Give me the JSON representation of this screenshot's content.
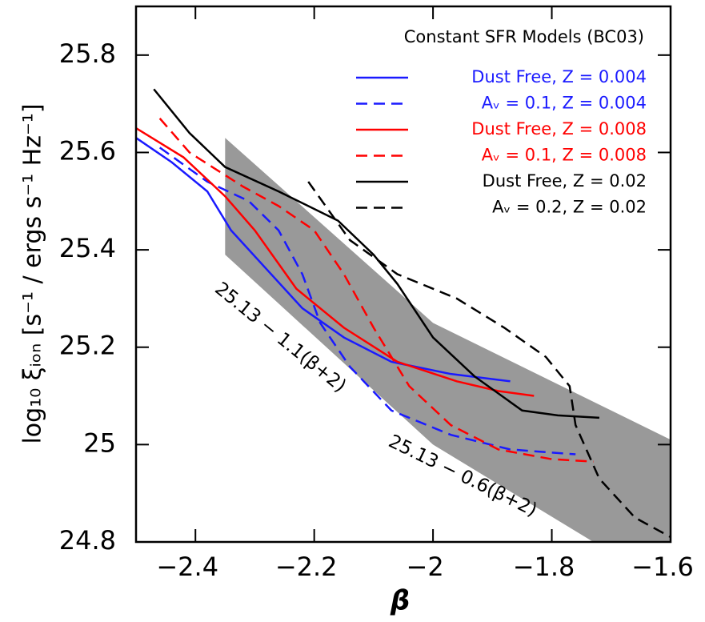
{
  "chart_data": {
    "type": "line",
    "xlabel": "β",
    "ylabel": "log₁₀ ξᵢₒₙ [s⁻¹ / ergs s⁻¹ Hz⁻¹]",
    "xlim": [
      -2.5,
      -1.6
    ],
    "ylim": [
      24.8,
      25.9
    ],
    "xticks": [
      {
        "value": -2.4,
        "label": "−2.4"
      },
      {
        "value": -2.2,
        "label": "−2.2"
      },
      {
        "value": -2,
        "label": "−2"
      },
      {
        "value": -1.8,
        "label": "−1.8"
      },
      {
        "value": -1.6,
        "label": "−1.6"
      }
    ],
    "yticks": [
      24.8,
      25,
      25.2,
      25.4,
      25.6,
      25.8
    ],
    "legend_title": "Constant SFR Models (BC03)",
    "legend_position": "upper right",
    "shaded_region": {
      "color": "#999999",
      "x": [
        -2.35,
        -2.0,
        -1.6,
        -1.6,
        -1.73,
        -2.0,
        -2.35
      ],
      "y": [
        25.63,
        25.25,
        25.01,
        24.8,
        24.8,
        25.0,
        25.39
      ]
    },
    "annotations": [
      "25.13 − 1.1(β+2)",
      "25.13 − 0.6(β+2)"
    ],
    "series": [
      {
        "name": "Dust Free, Z = 0.004",
        "color": "#1a1aff",
        "dashed": false,
        "x": [
          -2.5,
          -2.44,
          -2.38,
          -2.34,
          -2.28,
          -2.22,
          -2.15,
          -2.07,
          -1.97,
          -1.87
        ],
        "values": [
          25.63,
          25.58,
          25.52,
          25.44,
          25.36,
          25.28,
          25.22,
          25.17,
          25.145,
          25.13
        ]
      },
      {
        "name": "Aᵥ = 0.1, Z = 0.004",
        "color": "#1a1aff",
        "dashed": true,
        "x": [
          -2.46,
          -2.38,
          -2.31,
          -2.26,
          -2.22,
          -2.19,
          -2.14,
          -2.07,
          -1.97,
          -1.87,
          -1.76
        ],
        "values": [
          25.61,
          25.54,
          25.5,
          25.44,
          25.35,
          25.25,
          25.16,
          25.07,
          25.02,
          24.99,
          24.98
        ]
      },
      {
        "name": "Dust Free, Z = 0.008",
        "color": "#ff0000",
        "dashed": false,
        "x": [
          -2.5,
          -2.42,
          -2.35,
          -2.3,
          -2.23,
          -2.15,
          -2.06,
          -1.96,
          -1.89,
          -1.83
        ],
        "values": [
          25.65,
          25.59,
          25.51,
          25.44,
          25.32,
          25.24,
          25.17,
          25.13,
          25.11,
          25.1
        ]
      },
      {
        "name": "Aᵥ = 0.1, Z = 0.008",
        "color": "#ff0000",
        "dashed": true,
        "x": [
          -2.46,
          -2.41,
          -2.32,
          -2.26,
          -2.2,
          -2.15,
          -2.1,
          -2.04,
          -1.97,
          -1.89,
          -1.8,
          -1.73
        ],
        "values": [
          25.67,
          25.6,
          25.53,
          25.49,
          25.44,
          25.35,
          25.24,
          25.12,
          25.04,
          24.99,
          24.97,
          24.965
        ]
      },
      {
        "name": "Dust Free, Z = 0.02",
        "color": "#000000",
        "dashed": false,
        "x": [
          -2.47,
          -2.41,
          -2.35,
          -2.26,
          -2.16,
          -2.1,
          -2.06,
          -2.0,
          -1.93,
          -1.85,
          -1.79,
          -1.72
        ],
        "values": [
          25.73,
          25.64,
          25.57,
          25.52,
          25.46,
          25.39,
          25.33,
          25.22,
          25.14,
          25.07,
          25.06,
          25.055
        ]
      },
      {
        "name": "Aᵥ = 0.2, Z = 0.02",
        "color": "#000000",
        "dashed": true,
        "x": [
          -2.21,
          -2.14,
          -2.06,
          -1.96,
          -1.88,
          -1.81,
          -1.77,
          -1.76,
          -1.72,
          -1.66,
          -1.6
        ],
        "values": [
          25.54,
          25.42,
          25.35,
          25.3,
          25.24,
          25.18,
          25.12,
          25.04,
          24.93,
          24.85,
          24.81
        ]
      }
    ]
  }
}
